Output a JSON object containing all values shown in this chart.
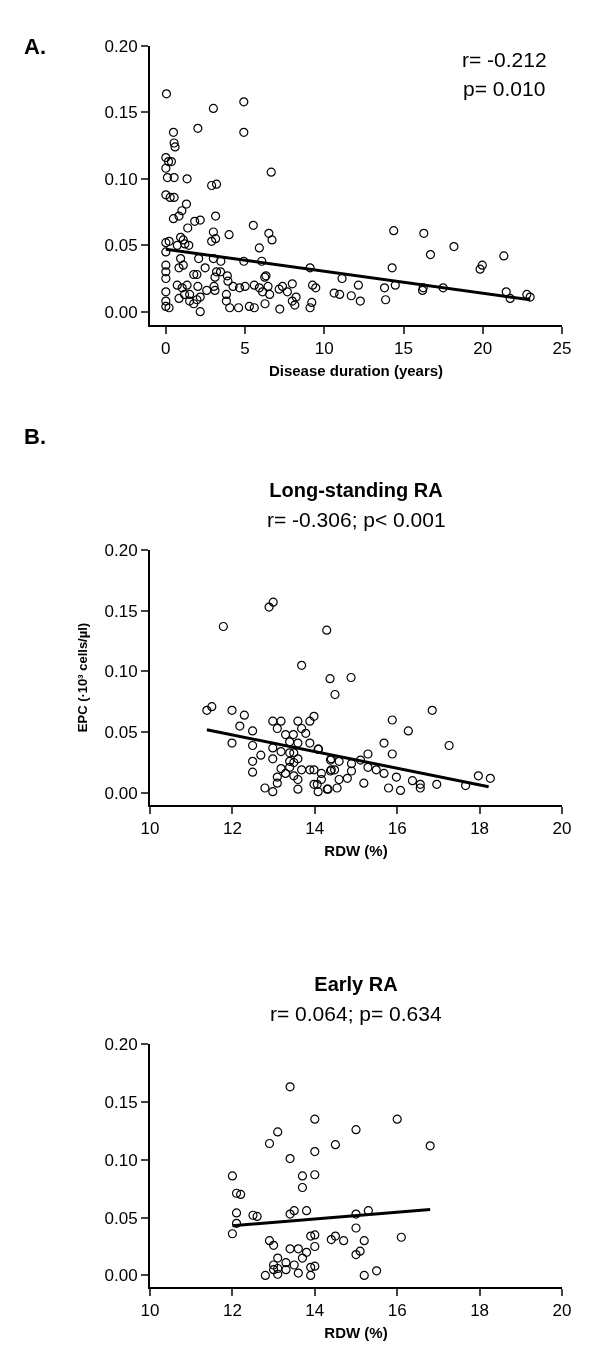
{
  "chart_data": [
    {
      "type": "scatter",
      "xlabel": "Disease duration (years)",
      "annotations": [
        "A.",
        "r= -0.212",
        "p= 0.010"
      ],
      "grid": false,
      "xlim": [
        -1,
        25
      ],
      "ylim": [
        -0.01,
        0.2
      ],
      "xticks": [
        0,
        5,
        10,
        15,
        20,
        25
      ],
      "yticks": [
        {
          "value": 0,
          "label": "0.00"
        },
        {
          "value": 0.05,
          "label": "0.05"
        },
        {
          "value": 0.1,
          "label": "0.10"
        },
        {
          "value": 0.15,
          "label": "0.15"
        },
        {
          "value": 0.2,
          "label": "0.20"
        }
      ],
      "series": [
        {
          "marker": "circle",
          "color": "#000000",
          "x": [
            0.04,
            3.0,
            4.92,
            2.02,
            0.48,
            4.92,
            0.52,
            0.58,
            0,
            0.17,
            0.35,
            0,
            0.1,
            0.52,
            1.34,
            0,
            0.27,
            0.52,
            1.3,
            1.01,
            0.83,
            0.48,
            1.38,
            1.82,
            2.17,
            2.89,
            3.2,
            3.14,
            6.65,
            5.52,
            3.99,
            3.0,
            3.14,
            2.89,
            0,
            0.21,
            0.93,
            1.1,
            1.2,
            1.45,
            6.5,
            6.7,
            5.9,
            0,
            0,
            0,
            0,
            0,
            0,
            0,
            0.2,
            0.72,
            0.93,
            0.83,
            1.1,
            0.72,
            1.03,
            0.83,
            1.18,
            1.34,
            1.5,
            1.76,
            1.96,
            2.07,
            2.48,
            1.5,
            1.76,
            2.17,
            1.96,
            2.02,
            2.17,
            2.58,
            3.04,
            3.1,
            3.2,
            3.1,
            3.0,
            3.47,
            3.45,
            3.88,
            3.92,
            3.82,
            3.82,
            4.03,
            4.59,
            4.24,
            4.65,
            5.0,
            4.92,
            5.27,
            5.58,
            5.58,
            5.9,
            6.26,
            6.1,
            6.24,
            6.05,
            6.45,
            6.55,
            6.32,
            7.19,
            7.15,
            7.36,
            7.67,
            7.98,
            8.22,
            8.14,
            7.98,
            9.1,
            9.26,
            9.46,
            9.21,
            9.1,
            11.12,
            10.62,
            10.97,
            11.7,
            12.15,
            12.27,
            13.8,
            13.87,
            14.28,
            14.38,
            14.48,
            16.28,
            16.7,
            16.24,
            16.2,
            17.5,
            18.18,
            19.83,
            19.97,
            21.33,
            21.48,
            21.73,
            22.78,
            22.99
          ],
          "values": [
            0.164,
            0.153,
            0.158,
            0.138,
            0.135,
            0.135,
            0.127,
            0.124,
            0.116,
            0.113,
            0.113,
            0.108,
            0.101,
            0.101,
            0.1,
            0.088,
            0.086,
            0.086,
            0.081,
            0.076,
            0.072,
            0.07,
            0.063,
            0.068,
            0.069,
            0.095,
            0.096,
            0.072,
            0.105,
            0.065,
            0.058,
            0.06,
            0.055,
            0.053,
            0.052,
            0.053,
            0.056,
            0.054,
            0.051,
            0.05,
            0.059,
            0.054,
            0.048,
            0.045,
            0.035,
            0.03,
            0.025,
            0.015,
            0.008,
            0.004,
            0.003,
            0.05,
            0.04,
            0.033,
            0.035,
            0.02,
            0.018,
            0.01,
            0.013,
            0.02,
            0.013,
            0.028,
            0.028,
            0.04,
            0.033,
            0.008,
            0.006,
            0.0,
            0.009,
            0.019,
            0.011,
            0.016,
            0.019,
            0.026,
            0.03,
            0.016,
            0.04,
            0.038,
            0.03,
            0.027,
            0.023,
            0.013,
            0.008,
            0.003,
            0.003,
            0.019,
            0.018,
            0.019,
            0.038,
            0.004,
            0.003,
            0.02,
            0.018,
            0.006,
            0.015,
            0.026,
            0.038,
            0.019,
            0.013,
            0.027,
            0.002,
            0.017,
            0.019,
            0.015,
            0.021,
            0.011,
            0.005,
            0.008,
            0.033,
            0.02,
            0.018,
            0.007,
            0.003,
            0.025,
            0.014,
            0.013,
            0.012,
            0.02,
            0.008,
            0.018,
            0.009,
            0.033,
            0.061,
            0.02,
            0.059,
            0.043,
            0.018,
            0.016,
            0.018,
            0.049,
            0.032,
            0.035,
            0.042,
            0.015,
            0.01,
            0.013,
            0.011
          ]
        },
        {
          "type": "line",
          "color": "#000000",
          "x": [
            0,
            22.99
          ],
          "values": [
            0.047,
            0.009
          ]
        }
      ]
    },
    {
      "type": "scatter",
      "title": "Long-standing RA",
      "subtitle": "r= -0.306; p< 0.001",
      "xlabel": "RDW (%)",
      "ylabel": "EPC (·10³ cells/µl)",
      "annotations": [
        "B."
      ],
      "grid": false,
      "xlim": [
        10,
        20
      ],
      "ylim": [
        -0.01,
        0.2
      ],
      "xticks": [
        10,
        12,
        14,
        16,
        18,
        20
      ],
      "yticks": [
        {
          "value": 0,
          "label": "0.00"
        },
        {
          "value": 0.05,
          "label": "0.05"
        },
        {
          "value": 0.1,
          "label": "0.10"
        },
        {
          "value": 0.15,
          "label": "0.15"
        },
        {
          "value": 0.2,
          "label": "0.20"
        }
      ],
      "series": [
        {
          "marker": "circle",
          "color": "#000000",
          "x": [
            11.78,
            12.89,
            12.99,
            14.29,
            13.68,
            14.37,
            14.49,
            14.88,
            11.38,
            11.5,
            11.99,
            12.29,
            12.18,
            12.49,
            11.99,
            12.49,
            12.69,
            12.49,
            12.49,
            12.79,
            12.98,
            12.98,
            13.18,
            13.09,
            13.59,
            13.29,
            13.48,
            13.68,
            13.78,
            13.39,
            13.59,
            13.88,
            13.88,
            13.98,
            12.98,
            13.18,
            13.39,
            13.49,
            12.98,
            13.39,
            13.49,
            13.59,
            14.08,
            13.18,
            13.39,
            13.68,
            13.88,
            13.98,
            13.29,
            13.49,
            13.59,
            13.09,
            13.09,
            13.59,
            13.98,
            14.08,
            14.32,
            14.16,
            14.4,
            14.4,
            14.09,
            14.38,
            14.59,
            14.38,
            14.48,
            14.16,
            14.59,
            14.79,
            14.89,
            14.89,
            15.11,
            15.29,
            15.29,
            15.49,
            15.68,
            15.68,
            15.88,
            15.88,
            16.27,
            15.98,
            15.79,
            16.08,
            16.37,
            16.56,
            16.56,
            16.85,
            16.96,
            17.26,
            17.66,
            17.97,
            18.26,
            15.19,
            14.3,
            14.06,
            14.54
          ],
          "values": [
            0.137,
            0.153,
            0.157,
            0.134,
            0.105,
            0.094,
            0.081,
            0.095,
            0.068,
            0.071,
            0.068,
            0.064,
            0.055,
            0.051,
            0.041,
            0.039,
            0.031,
            0.026,
            0.017,
            0.004,
            0.001,
            0.059,
            0.059,
            0.053,
            0.059,
            0.048,
            0.048,
            0.053,
            0.049,
            0.042,
            0.041,
            0.041,
            0.059,
            0.063,
            0.037,
            0.034,
            0.033,
            0.033,
            0.028,
            0.026,
            0.025,
            0.028,
            0.036,
            0.02,
            0.021,
            0.019,
            0.019,
            0.019,
            0.016,
            0.014,
            0.011,
            0.013,
            0.008,
            0.003,
            0.007,
            0.001,
            0.003,
            0.011,
            0.019,
            0.028,
            0.036,
            0.027,
            0.026,
            0.018,
            0.019,
            0.016,
            0.011,
            0.012,
            0.018,
            0.024,
            0.027,
            0.032,
            0.021,
            0.019,
            0.016,
            0.041,
            0.06,
            0.032,
            0.051,
            0.013,
            0.004,
            0.002,
            0.01,
            0.007,
            0.004,
            0.068,
            0.007,
            0.039,
            0.006,
            0.014,
            0.012,
            0.008,
            0.003,
            0.007,
            0.004
          ]
        },
        {
          "type": "line",
          "color": "#000000",
          "x": [
            11.38,
            18.22
          ],
          "values": [
            0.052,
            0.005
          ]
        }
      ]
    },
    {
      "type": "scatter",
      "title": "Early RA",
      "subtitle": "r= 0.064; p= 0.634",
      "xlabel": "RDW (%)",
      "grid": false,
      "xlim": [
        10,
        20
      ],
      "ylim": [
        -0.01,
        0.2
      ],
      "xticks": [
        10,
        12,
        14,
        16,
        18,
        20
      ],
      "yticks": [
        {
          "value": 0,
          "label": "0.00"
        },
        {
          "value": 0.05,
          "label": "0.05"
        },
        {
          "value": 0.1,
          "label": "0.10"
        },
        {
          "value": 0.15,
          "label": "0.15"
        },
        {
          "value": 0.2,
          "label": "0.20"
        }
      ],
      "series": [
        {
          "marker": "circle",
          "color": "#000000",
          "x": [
            13.4,
            14.0,
            16.0,
            15.0,
            13.1,
            12.9,
            14.5,
            16.8,
            14.0,
            13.4,
            12.0,
            13.7,
            14.0,
            13.7,
            12.1,
            12.2,
            12.1,
            12.5,
            12.6,
            13.4,
            13.5,
            13.8,
            15.0,
            15.3,
            12.1,
            12.0,
            15.0,
            13.9,
            14.0,
            14.5,
            14.4,
            14.7,
            15.2,
            16.1,
            12.9,
            13.0,
            13.4,
            13.6,
            14.0,
            13.8,
            15.1,
            15.0,
            13.1,
            13.7,
            13.3,
            13.0,
            13.5,
            13.1,
            13.3,
            13.9,
            14.0,
            12.8,
            13.1,
            13.6,
            13.9,
            15.2,
            15.5,
            13.0
          ],
          "values": [
            0.163,
            0.135,
            0.135,
            0.126,
            0.124,
            0.114,
            0.113,
            0.112,
            0.107,
            0.101,
            0.086,
            0.086,
            0.087,
            0.076,
            0.071,
            0.07,
            0.054,
            0.052,
            0.051,
            0.053,
            0.056,
            0.056,
            0.053,
            0.056,
            0.045,
            0.036,
            0.041,
            0.034,
            0.035,
            0.034,
            0.031,
            0.03,
            0.03,
            0.033,
            0.03,
            0.026,
            0.023,
            0.023,
            0.025,
            0.02,
            0.021,
            0.018,
            0.015,
            0.015,
            0.011,
            0.009,
            0.009,
            0.006,
            0.005,
            0.007,
            0.008,
            0.0,
            0.001,
            0.002,
            0.0,
            0.0,
            0.004,
            0.005
          ]
        },
        {
          "type": "line",
          "color": "#000000",
          "x": [
            12.0,
            16.8
          ],
          "values": [
            0.043,
            0.057
          ]
        }
      ]
    }
  ]
}
